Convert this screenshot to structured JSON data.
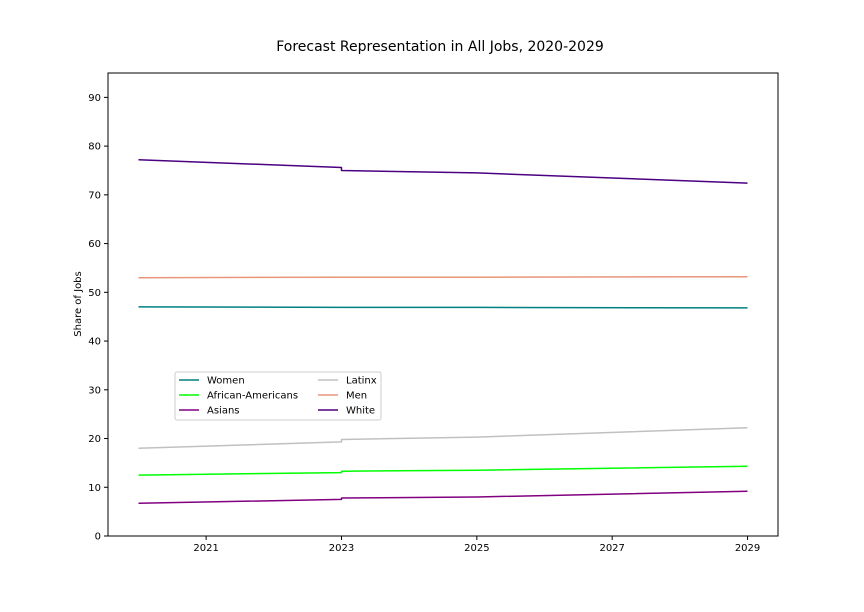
{
  "chart_data": {
    "type": "line",
    "title": "Forecast Representation in All Jobs, 2020-2029",
    "xlabel": "",
    "ylabel": "Share of Jobs",
    "xlim": [
      2019.55,
      2029.45
    ],
    "ylim": [
      0,
      95
    ],
    "xticks": [
      2021,
      2023,
      2025,
      2027,
      2029
    ],
    "xtick_labels": [
      "2021",
      "2023",
      "2025",
      "2027",
      "2029"
    ],
    "yticks": [
      0,
      10,
      20,
      30,
      40,
      50,
      60,
      70,
      80,
      90
    ],
    "ytick_labels": [
      "0",
      "10",
      "20",
      "30",
      "40",
      "50",
      "60",
      "70",
      "80",
      "90"
    ],
    "grid": false,
    "legend_position": "lower-left",
    "series": [
      {
        "name": "Women",
        "color": "#008080",
        "x": [
          2020,
          2023,
          2023,
          2025,
          2029
        ],
        "values": [
          47.0,
          46.9,
          46.9,
          46.9,
          46.8
        ]
      },
      {
        "name": "African-Americans",
        "color": "#00ff00",
        "x": [
          2020,
          2023,
          2023,
          2025,
          2029
        ],
        "values": [
          12.5,
          13.0,
          13.3,
          13.5,
          14.3
        ]
      },
      {
        "name": "Asians",
        "color": "#800080",
        "x": [
          2020,
          2023,
          2023,
          2025,
          2029
        ],
        "values": [
          6.7,
          7.5,
          7.8,
          8.0,
          9.2
        ]
      },
      {
        "name": "Latinx",
        "color": "#c0c0c0",
        "x": [
          2020,
          2023,
          2023,
          2025,
          2029
        ],
        "values": [
          18.0,
          19.3,
          19.8,
          20.3,
          22.2
        ]
      },
      {
        "name": "Men",
        "color": "#e9967a",
        "x": [
          2020,
          2023,
          2023,
          2025,
          2029
        ],
        "values": [
          53.0,
          53.1,
          53.1,
          53.1,
          53.2
        ]
      },
      {
        "name": "White",
        "color": "#4b0082",
        "x": [
          2020,
          2023,
          2023,
          2025,
          2029
        ],
        "values": [
          77.2,
          75.6,
          75.0,
          74.5,
          72.4
        ]
      }
    ]
  }
}
